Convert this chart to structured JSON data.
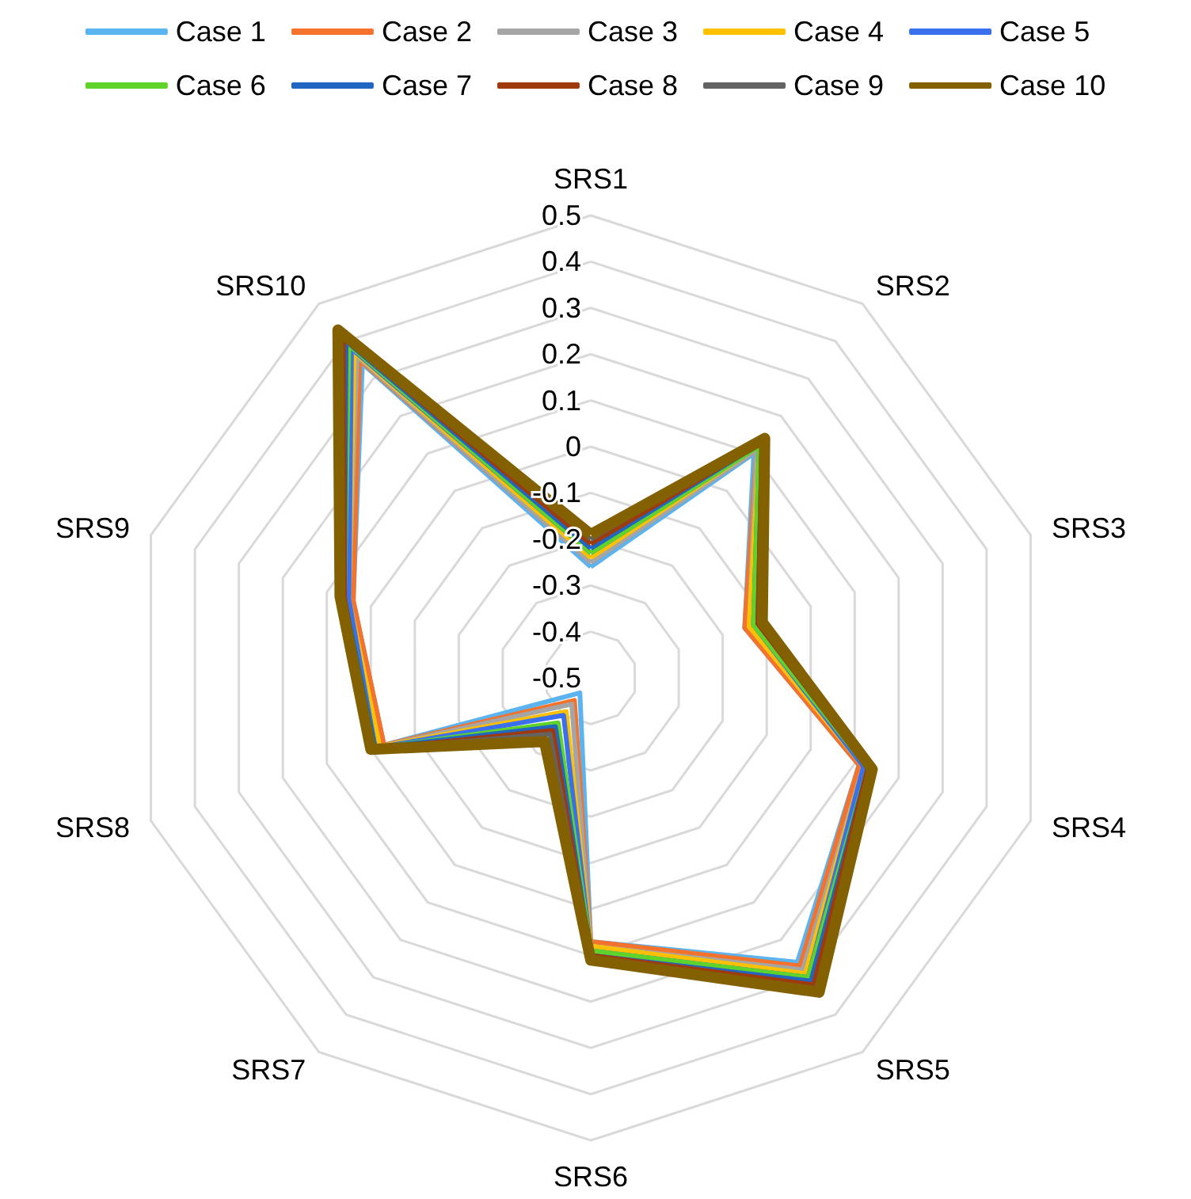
{
  "chart_data": {
    "type": "radar",
    "categories": [
      "SRS1",
      "SRS2",
      "SRS3",
      "SRS4",
      "SRS5",
      "SRS6",
      "SRS7",
      "SRS8",
      "SRS9",
      "SRS10"
    ],
    "ylim": [
      -0.5,
      0.5
    ],
    "yticks": [
      -0.5,
      -0.4,
      -0.3,
      -0.2,
      -0.1,
      0,
      0.1,
      0.2,
      0.3,
      0.4,
      0.5
    ],
    "grid": true,
    "legend": "top",
    "marker": "none",
    "line_style": "solid",
    "series": [
      {
        "name": "Case 1",
        "color": "#5bb4f0",
        "values": [
          -0.26,
          0.1,
          -0.15,
          0.11,
          0.26,
          0.07,
          -0.46,
          -0.03,
          0.04,
          0.34
        ]
      },
      {
        "name": "Case 2",
        "color": "#f4722b",
        "values": [
          -0.25,
          0.11,
          -0.15,
          0.11,
          0.27,
          0.07,
          -0.44,
          -0.03,
          0.04,
          0.35
        ]
      },
      {
        "name": "Case 3",
        "color": "#a5a5a5",
        "values": [
          -0.25,
          0.11,
          -0.14,
          0.12,
          0.28,
          0.08,
          -0.43,
          -0.02,
          0.05,
          0.36
        ]
      },
      {
        "name": "Case 4",
        "color": "#ffc000",
        "values": [
          -0.24,
          0.12,
          -0.14,
          0.12,
          0.29,
          0.08,
          -0.41,
          -0.02,
          0.05,
          0.37
        ]
      },
      {
        "name": "Case 5",
        "color": "#3a6ff0",
        "values": [
          -0.23,
          0.12,
          -0.13,
          0.12,
          0.3,
          0.09,
          -0.4,
          -0.01,
          0.05,
          0.38
        ]
      },
      {
        "name": "Case 6",
        "color": "#5fd32a",
        "values": [
          -0.23,
          0.12,
          -0.13,
          0.13,
          0.3,
          0.09,
          -0.38,
          -0.01,
          0.06,
          0.39
        ]
      },
      {
        "name": "Case 7",
        "color": "#2166c0",
        "values": [
          -0.22,
          0.13,
          -0.12,
          0.13,
          0.31,
          0.1,
          -0.37,
          -0.01,
          0.06,
          0.4
        ]
      },
      {
        "name": "Case 8",
        "color": "#9e3a0c",
        "values": [
          -0.21,
          0.13,
          -0.12,
          0.13,
          0.32,
          0.1,
          -0.36,
          0.0,
          0.06,
          0.41
        ]
      },
      {
        "name": "Case 9",
        "color": "#636363",
        "values": [
          -0.2,
          0.14,
          -0.11,
          0.14,
          0.33,
          0.11,
          -0.35,
          0.0,
          0.07,
          0.42
        ]
      },
      {
        "name": "Case 10",
        "color": "#836000",
        "values": [
          -0.19,
          0.14,
          -0.11,
          0.14,
          0.34,
          0.11,
          -0.33,
          0.0,
          0.07,
          0.43
        ]
      }
    ]
  }
}
